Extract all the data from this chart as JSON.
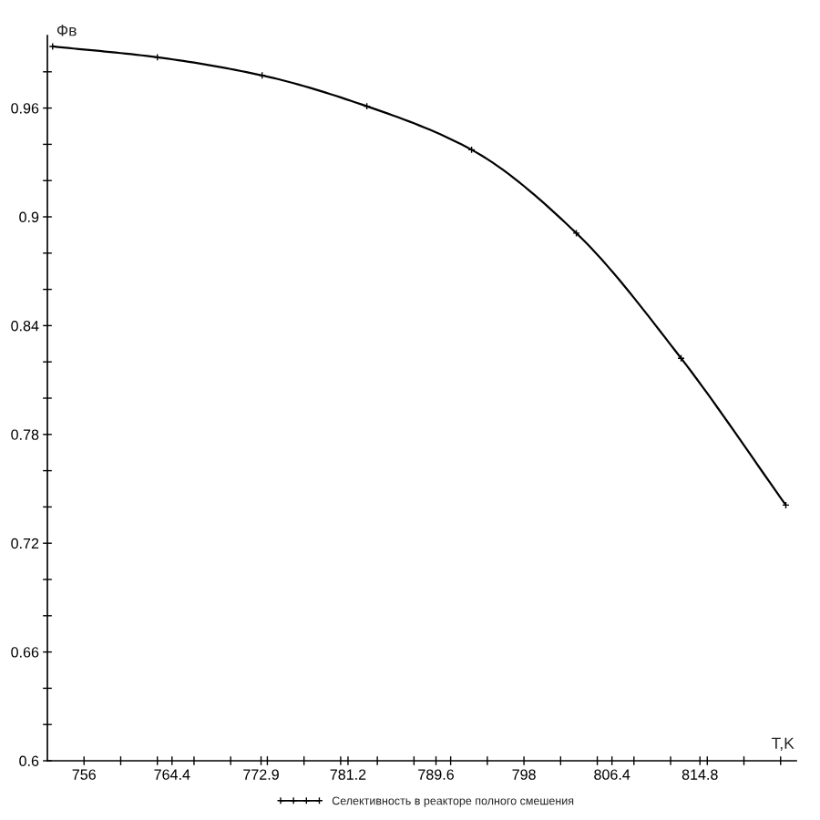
{
  "chart_data": {
    "type": "line",
    "xlabel": "T,K",
    "ylabel": "Фв",
    "x": [
      753,
      763,
      773,
      783,
      793,
      803,
      813,
      823
    ],
    "series": [
      {
        "name": "Селективность в реакторе полного смешения",
        "color": "#000000",
        "values": [
          0.994,
          0.988,
          0.978,
          0.961,
          0.937,
          0.891,
          0.822,
          0.741
        ]
      }
    ],
    "xlim": [
      752.5,
      824
    ],
    "xticks": [
      756,
      {
        "value": 759.5,
        "label": null
      },
      {
        "value": 763,
        "label": null
      },
      764.4,
      {
        "value": 766.5,
        "label": null
      },
      {
        "value": 770,
        "label": null
      },
      772.9,
      {
        "value": 773.5,
        "label": null
      },
      {
        "value": 777,
        "label": null
      },
      {
        "value": 780.5,
        "label": null
      },
      781.2,
      {
        "value": 784,
        "label": null
      },
      {
        "value": 787.5,
        "label": null
      },
      789.6,
      {
        "value": 791,
        "label": null
      },
      {
        "value": 794.5,
        "label": null
      },
      798,
      {
        "value": 801.5,
        "label": null
      },
      {
        "value": 805,
        "label": null
      },
      806.4,
      {
        "value": 808.5,
        "label": null
      },
      {
        "value": 812,
        "label": null
      },
      814.8,
      {
        "value": 815.5,
        "label": null
      },
      {
        "value": 819,
        "label": null
      },
      {
        "value": 822.5,
        "label": null
      }
    ],
    "ylim": [
      0.6,
      1.0
    ],
    "yticks": [
      0.6,
      {
        "value": 0.62,
        "label": null
      },
      {
        "value": 0.64,
        "label": null
      },
      0.66,
      {
        "value": 0.68,
        "label": null
      },
      {
        "value": 0.7,
        "label": null
      },
      0.72,
      {
        "value": 0.74,
        "label": null
      },
      {
        "value": 0.76,
        "label": null
      },
      0.78,
      {
        "value": 0.8,
        "label": null
      },
      {
        "value": 0.82,
        "label": null
      },
      0.84,
      {
        "value": 0.86,
        "label": null
      },
      {
        "value": 0.88,
        "label": null
      },
      0.9,
      {
        "value": 0.92,
        "label": null
      },
      {
        "value": 0.94,
        "label": null
      },
      0.96,
      {
        "value": 0.98,
        "label": null
      }
    ],
    "legend": "bottom",
    "marker": "cross",
    "line_style": "solid"
  }
}
